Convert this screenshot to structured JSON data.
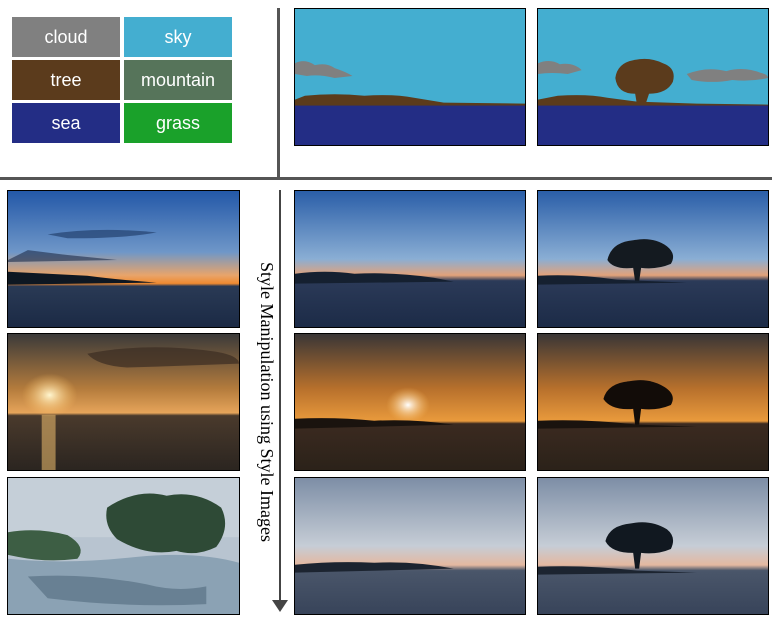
{
  "legend": [
    {
      "label": "cloud",
      "color": "#808080"
    },
    {
      "label": "sky",
      "color": "#44aed0"
    },
    {
      "label": "tree",
      "color": "#5b3b1c"
    },
    {
      "label": "mountain",
      "color": "#56745a"
    },
    {
      "label": "sea",
      "color": "#232d85"
    },
    {
      "label": "grass",
      "color": "#1aa12a"
    }
  ],
  "style_label": "Style Manipulation using Style Images"
}
